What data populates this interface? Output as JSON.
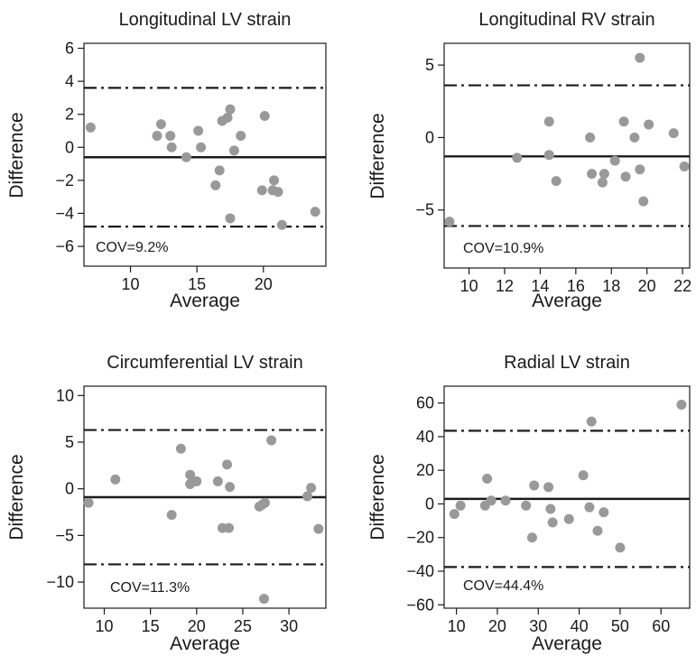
{
  "chart_data": [
    {
      "type": "scatter",
      "title": "Longitudinal LV strain",
      "xlabel": "Average",
      "ylabel": "Difference",
      "xlim": [
        6.5,
        24.7
      ],
      "ylim": [
        -7.2,
        6.3
      ],
      "xticks": [
        10,
        15,
        20
      ],
      "yticks": [
        -6,
        -4,
        -2,
        0,
        2,
        4,
        6
      ],
      "mean_line": -0.6,
      "limits_of_agreement": [
        3.6,
        -4.8
      ],
      "annotation": "COV=9.2%",
      "points": [
        {
          "x": 7.0,
          "y": 1.2
        },
        {
          "x": 12.0,
          "y": 0.7
        },
        {
          "x": 12.3,
          "y": 1.4
        },
        {
          "x": 13.0,
          "y": 0.7
        },
        {
          "x": 13.1,
          "y": 0.0
        },
        {
          "x": 14.2,
          "y": -0.6
        },
        {
          "x": 15.1,
          "y": 1.0
        },
        {
          "x": 15.3,
          "y": 0.0
        },
        {
          "x": 16.4,
          "y": -2.3
        },
        {
          "x": 16.7,
          "y": -1.4
        },
        {
          "x": 16.9,
          "y": 1.6
        },
        {
          "x": 17.3,
          "y": 1.8
        },
        {
          "x": 17.5,
          "y": 2.3
        },
        {
          "x": 17.5,
          "y": -4.3
        },
        {
          "x": 17.8,
          "y": -0.2
        },
        {
          "x": 18.3,
          "y": 0.7
        },
        {
          "x": 19.9,
          "y": -2.6
        },
        {
          "x": 20.1,
          "y": 1.9
        },
        {
          "x": 20.7,
          "y": -2.6
        },
        {
          "x": 20.8,
          "y": -2.0
        },
        {
          "x": 21.1,
          "y": -2.7
        },
        {
          "x": 21.4,
          "y": -4.7
        },
        {
          "x": 23.9,
          "y": -3.9
        }
      ]
    },
    {
      "type": "scatter",
      "title": "Longitudinal RV strain",
      "xlabel": "Average",
      "ylabel": "Difference",
      "xlim": [
        8.6,
        22.4
      ],
      "ylim": [
        -9.0,
        6.5
      ],
      "xticks": [
        10,
        12,
        14,
        16,
        18,
        20,
        22
      ],
      "yticks": [
        -5,
        0,
        5
      ],
      "mean_line": -1.3,
      "limits_of_agreement": [
        3.6,
        -6.1
      ],
      "annotation": "COV=10.9%",
      "points": [
        {
          "x": 8.9,
          "y": -5.8
        },
        {
          "x": 12.7,
          "y": -1.4
        },
        {
          "x": 14.5,
          "y": 1.1
        },
        {
          "x": 14.5,
          "y": -1.2
        },
        {
          "x": 14.9,
          "y": -3.0
        },
        {
          "x": 16.8,
          "y": 0.0
        },
        {
          "x": 16.9,
          "y": -2.5
        },
        {
          "x": 17.5,
          "y": -3.1
        },
        {
          "x": 17.6,
          "y": -2.5
        },
        {
          "x": 18.2,
          "y": -1.6
        },
        {
          "x": 18.7,
          "y": 1.1
        },
        {
          "x": 18.8,
          "y": -2.7
        },
        {
          "x": 19.3,
          "y": 0.0
        },
        {
          "x": 19.6,
          "y": -2.2
        },
        {
          "x": 19.6,
          "y": 5.5
        },
        {
          "x": 19.8,
          "y": -4.4
        },
        {
          "x": 20.1,
          "y": 0.9
        },
        {
          "x": 21.5,
          "y": 0.3
        },
        {
          "x": 22.1,
          "y": -2.0
        }
      ]
    },
    {
      "type": "scatter",
      "title": "Circumferential LV strain",
      "xlabel": "Average",
      "ylabel": "Difference",
      "xlim": [
        7.8,
        34.0
      ],
      "ylim": [
        -12.8,
        11.0
      ],
      "xticks": [
        10,
        15,
        20,
        25,
        30
      ],
      "yticks": [
        -10,
        -5,
        0,
        5,
        10
      ],
      "mean_line": -0.9,
      "limits_of_agreement": [
        6.3,
        -8.1
      ],
      "annotation": "COV=11.3%",
      "points": [
        {
          "x": 8.3,
          "y": -1.5
        },
        {
          "x": 11.2,
          "y": 1.0
        },
        {
          "x": 17.3,
          "y": -2.8
        },
        {
          "x": 18.3,
          "y": 4.3
        },
        {
          "x": 19.3,
          "y": 1.5
        },
        {
          "x": 19.3,
          "y": 0.5
        },
        {
          "x": 20.0,
          "y": 0.8
        },
        {
          "x": 22.3,
          "y": 0.8
        },
        {
          "x": 22.8,
          "y": -4.2
        },
        {
          "x": 23.3,
          "y": 2.6
        },
        {
          "x": 23.5,
          "y": -4.2
        },
        {
          "x": 23.6,
          "y": 0.2
        },
        {
          "x": 26.8,
          "y": -1.9
        },
        {
          "x": 27.1,
          "y": -1.7
        },
        {
          "x": 27.3,
          "y": -11.8
        },
        {
          "x": 27.4,
          "y": -1.5
        },
        {
          "x": 28.1,
          "y": 5.2
        },
        {
          "x": 32.0,
          "y": -0.8
        },
        {
          "x": 32.4,
          "y": 0.1
        },
        {
          "x": 33.2,
          "y": -4.3
        }
      ]
    },
    {
      "type": "scatter",
      "title": "Radial LV strain",
      "xlabel": "Average",
      "ylabel": "Difference",
      "xlim": [
        7,
        67
      ],
      "ylim": [
        -62,
        70
      ],
      "xticks": [
        10,
        20,
        30,
        40,
        50,
        60
      ],
      "yticks": [
        -60,
        -40,
        -20,
        0,
        20,
        40,
        60
      ],
      "mean_line": 3,
      "limits_of_agreement": [
        43.5,
        -37.5
      ],
      "annotation": "COV=44.4%",
      "points": [
        {
          "x": 9.5,
          "y": -6
        },
        {
          "x": 11.0,
          "y": -1
        },
        {
          "x": 17.0,
          "y": -1
        },
        {
          "x": 17.5,
          "y": 15
        },
        {
          "x": 18.5,
          "y": 2
        },
        {
          "x": 22.0,
          "y": 2
        },
        {
          "x": 27.0,
          "y": -1
        },
        {
          "x": 28.5,
          "y": -20
        },
        {
          "x": 29.0,
          "y": 11
        },
        {
          "x": 32.5,
          "y": 10
        },
        {
          "x": 33.0,
          "y": -3
        },
        {
          "x": 33.5,
          "y": -11
        },
        {
          "x": 37.5,
          "y": -9
        },
        {
          "x": 41.0,
          "y": 17
        },
        {
          "x": 42.5,
          "y": -2
        },
        {
          "x": 43.0,
          "y": 49
        },
        {
          "x": 44.5,
          "y": -16
        },
        {
          "x": 46.0,
          "y": -5
        },
        {
          "x": 50.0,
          "y": -26
        },
        {
          "x": 65.0,
          "y": 59
        }
      ]
    }
  ],
  "colors": {
    "points": "#999999",
    "lines": "#1a1a1a",
    "background": "#ffffff"
  }
}
